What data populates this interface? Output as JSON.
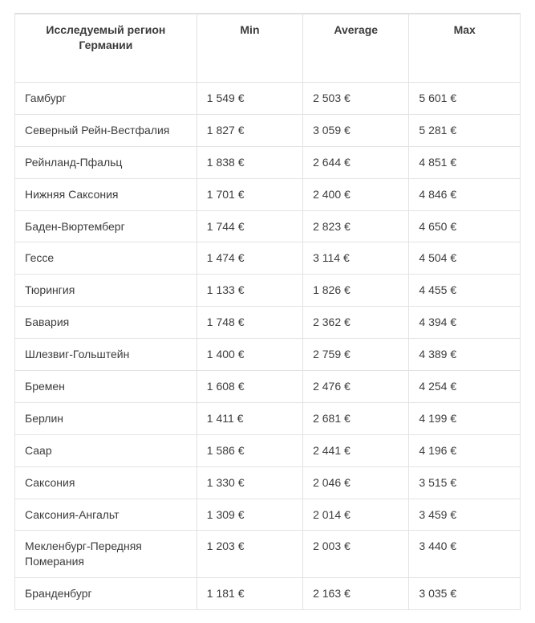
{
  "table": {
    "type": "table",
    "border_color": "#e3e3e3",
    "background_color": "#ffffff",
    "font_family": "Arial",
    "header_fontsize": 14,
    "cell_fontsize": 14,
    "text_color": "#3c3c3c",
    "columns": [
      {
        "key": "region",
        "label": "Исследуемый регион Германии",
        "align": "left",
        "width_pct": 36
      },
      {
        "key": "min",
        "label": "Min",
        "align": "left",
        "width_pct": 21
      },
      {
        "key": "avg",
        "label": "Average",
        "align": "left",
        "width_pct": 21
      },
      {
        "key": "max",
        "label": "Max",
        "align": "left",
        "width_pct": 22
      }
    ],
    "rows": [
      {
        "region": "Гамбург",
        "min": "1 549 €",
        "avg": "2 503 €",
        "max": "5 601 €"
      },
      {
        "region": "Северный Рейн-Вестфалия",
        "min": "1 827 €",
        "avg": "3 059 €",
        "max": "5 281 €"
      },
      {
        "region": "Рейнланд-Пфальц",
        "min": "1 838 €",
        "avg": "2 644 €",
        "max": "4 851 €"
      },
      {
        "region": "Нижняя Саксония",
        "min": "1 701 €",
        "avg": "2 400 €",
        "max": "4 846 €"
      },
      {
        "region": "Баден-Вюртемберг",
        "min": "1 744 €",
        "avg": "2 823 €",
        "max": "4 650 €"
      },
      {
        "region": "Гессе",
        "min": "1 474 €",
        "avg": "3 114 €",
        "max": "4 504 €"
      },
      {
        "region": "Тюрингия",
        "min": "1 133 €",
        "avg": "1 826 €",
        "max": "4 455 €"
      },
      {
        "region": "Бавария",
        "min": "1 748 €",
        "avg": "2 362 €",
        "max": "4 394 €"
      },
      {
        "region": "Шлезвиг-Гольштейн",
        "min": "1 400 €",
        "avg": "2 759 €",
        "max": "4 389 €"
      },
      {
        "region": "Бремен",
        "min": "1 608 €",
        "avg": "2 476 €",
        "max": "4 254 €"
      },
      {
        "region": "Берлин",
        "min": "1 411 €",
        "avg": "2 681 €",
        "max": "4 199 €"
      },
      {
        "region": "Саар",
        "min": "1 586 €",
        "avg": "2 441 €",
        "max": "4 196 €"
      },
      {
        "region": "Саксония",
        "min": "1 330 €",
        "avg": "2 046 €",
        "max": "3 515 €"
      },
      {
        "region": "Саксония-Ангальт",
        "min": "1 309 €",
        "avg": "2 014 €",
        "max": "3 459 €"
      },
      {
        "region": "Мекленбург-Передняя Померания",
        "min": "1 203 €",
        "avg": "2 003 €",
        "max": "3 440 €"
      },
      {
        "region": "Бранденбург",
        "min": "1 181 €",
        "avg": "2 163 €",
        "max": "3 035 €"
      }
    ]
  }
}
